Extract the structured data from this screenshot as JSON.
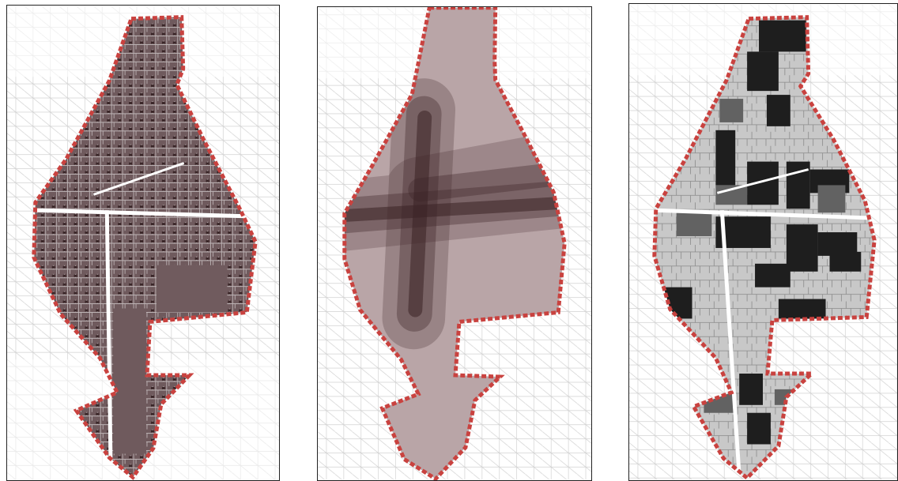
{
  "figure": {
    "panels": [
      {
        "id": "panel-1",
        "theme": "parcel-density",
        "fill_color": "#6f5a5d",
        "accent_color": "#2a1a1c"
      },
      {
        "id": "panel-2",
        "theme": "corridor-gradient",
        "fill_color": "#b7a2a4",
        "accent_color": "#3b2224"
      },
      {
        "id": "panel-3",
        "theme": "land-use-classes",
        "fill_color": "#c8c8c8",
        "accent_color": "#1e1e1e"
      }
    ],
    "boundary_color": "#c9423f",
    "context_line_color": "#c9c9c9"
  }
}
